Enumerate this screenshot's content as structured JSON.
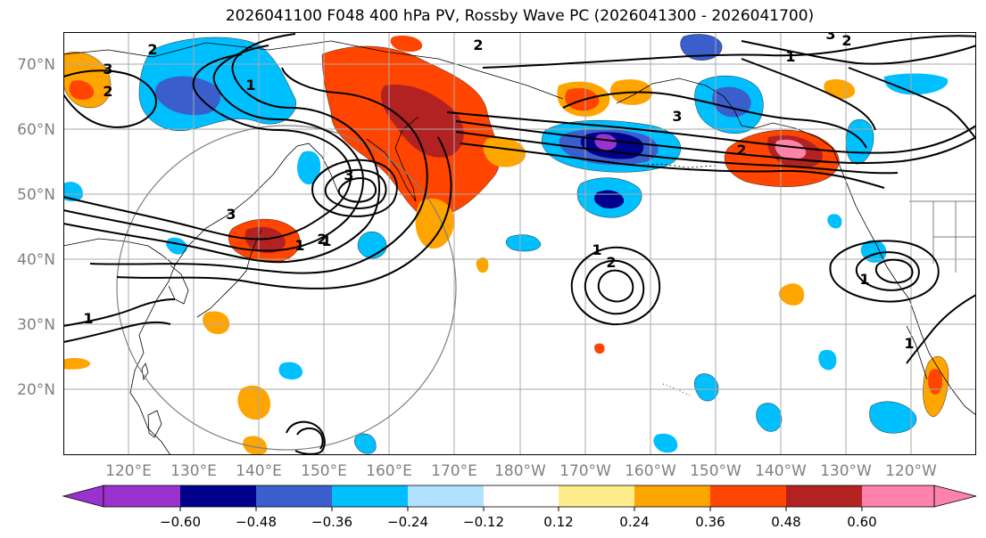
{
  "title": "2026041100 F048 400 hPa PV, Rossby Wave PC (2026041300 - 2026041700)",
  "map": {
    "lon_ticks": [
      "120°E",
      "130°E",
      "140°E",
      "150°E",
      "160°E",
      "170°E",
      "180°W",
      "170°W",
      "160°W",
      "150°W",
      "140°W",
      "130°W",
      "120°W"
    ],
    "lat_ticks": [
      "70°N",
      "60°N",
      "50°N",
      "40°N",
      "30°N",
      "20°N"
    ],
    "contour_labels": [
      {
        "text": "2"
      },
      {
        "text": "3"
      },
      {
        "text": "1"
      },
      {
        "text": "2"
      },
      {
        "text": "3"
      },
      {
        "text": "1"
      },
      {
        "text": "2"
      },
      {
        "text": "3"
      },
      {
        "text": "1"
      },
      {
        "text": "2"
      },
      {
        "text": "3"
      },
      {
        "text": "2"
      },
      {
        "text": "3"
      },
      {
        "text": "1"
      },
      {
        "text": "1"
      },
      {
        "text": "2"
      },
      {
        "text": "1"
      },
      {
        "text": "1"
      },
      {
        "text": "2"
      },
      {
        "text": "1"
      }
    ]
  },
  "colorbar": {
    "colors": [
      "#9a32cd",
      "#00008b",
      "#3a5fcd",
      "#00bfff",
      "#b0e2ff",
      "#ffffff",
      "#ffec8b",
      "#ffa500",
      "#ff4500",
      "#b22222",
      "#ff82ab"
    ],
    "tick_labels": [
      "−0.60",
      "−0.48",
      "−0.36",
      "−0.24",
      "−0.12",
      "0.12",
      "0.24",
      "0.36",
      "0.48",
      "0.60"
    ]
  },
  "colors": {
    "grid": "#aaaaaa",
    "axis_label": "#808080",
    "contour": "#000000",
    "circle": "#808080"
  }
}
